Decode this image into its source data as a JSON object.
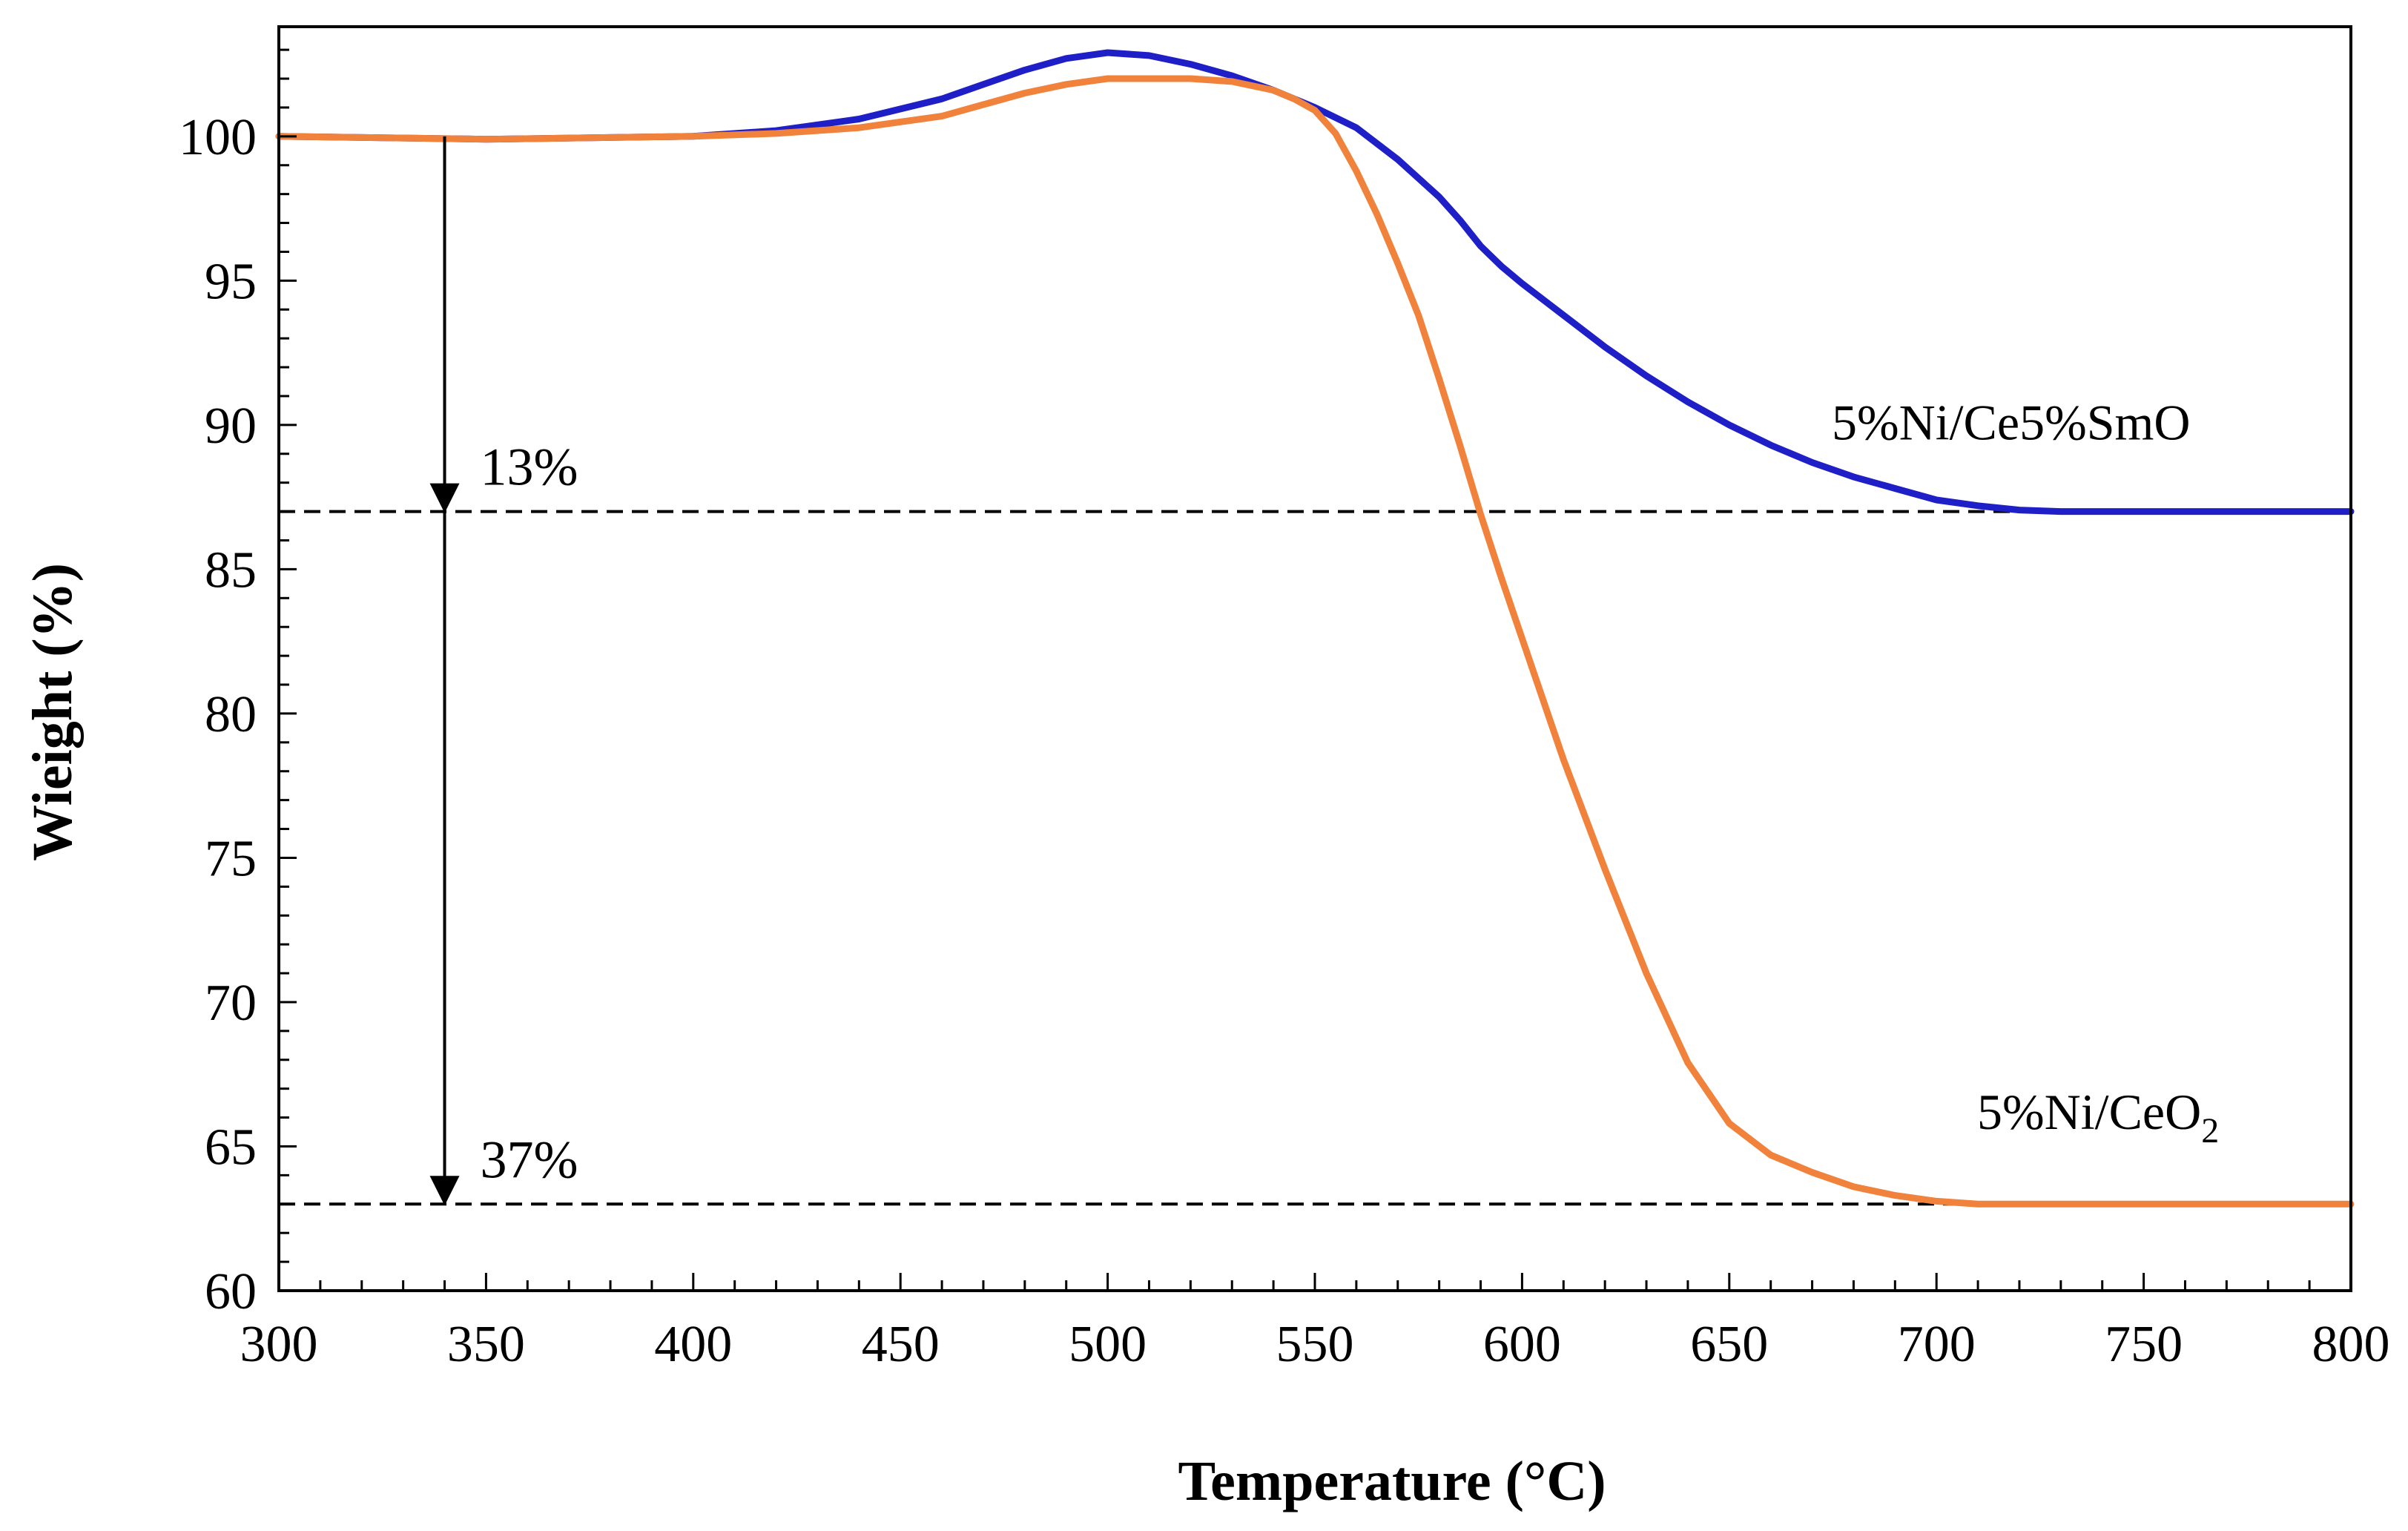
{
  "chart_data": {
    "type": "line",
    "title": "",
    "xlabel": "Temperature (°C)",
    "ylabel": "Wieight (%)",
    "xlim": [
      300,
      800
    ],
    "ylim": [
      60,
      103.8
    ],
    "xticks": [
      300,
      350,
      400,
      450,
      500,
      550,
      600,
      650,
      700,
      750,
      800
    ],
    "yticks": [
      60,
      65,
      70,
      75,
      80,
      85,
      90,
      95,
      100
    ],
    "grid": false,
    "legend": "none",
    "series": [
      {
        "name": "5%Ni/Ce5%SmO",
        "label_parts": [
          "5%Ni/Ce5%SmO"
        ],
        "color": "#1f1fc8",
        "x": [
          300,
          350,
          400,
          420,
          440,
          460,
          470,
          480,
          490,
          500,
          510,
          520,
          530,
          540,
          550,
          560,
          570,
          580,
          585,
          590,
          595,
          600,
          610,
          620,
          630,
          640,
          650,
          660,
          670,
          680,
          690,
          700,
          710,
          720,
          730,
          750,
          800
        ],
        "y": [
          100,
          99.9,
          100,
          100.2,
          100.6,
          101.3,
          101.8,
          102.3,
          102.7,
          102.9,
          102.8,
          102.5,
          102.1,
          101.6,
          101.0,
          100.3,
          99.2,
          97.9,
          97.1,
          96.2,
          95.5,
          94.9,
          93.8,
          92.7,
          91.7,
          90.8,
          90.0,
          89.3,
          88.7,
          88.2,
          87.8,
          87.4,
          87.2,
          87.05,
          87.0,
          87.0,
          87.0
        ]
      },
      {
        "name": "5%Ni/CeO2",
        "label_parts": [
          "5%Ni/CeO",
          "2"
        ],
        "color": "#f0823c",
        "x": [
          300,
          350,
          400,
          420,
          440,
          460,
          470,
          480,
          490,
          500,
          510,
          520,
          530,
          540,
          545,
          550,
          555,
          560,
          565,
          570,
          575,
          580,
          585,
          590,
          595,
          600,
          610,
          620,
          630,
          640,
          650,
          660,
          670,
          680,
          690,
          700,
          710,
          720,
          800
        ],
        "y": [
          100,
          99.9,
          100,
          100.1,
          100.3,
          100.7,
          101.1,
          101.5,
          101.8,
          102.0,
          102.0,
          102.0,
          101.9,
          101.6,
          101.3,
          100.9,
          100.1,
          98.8,
          97.3,
          95.6,
          93.8,
          91.6,
          89.3,
          86.9,
          84.7,
          82.6,
          78.4,
          74.6,
          71.0,
          67.9,
          65.8,
          64.7,
          64.1,
          63.6,
          63.3,
          63.1,
          63.0,
          63.0,
          63.0
        ]
      }
    ],
    "annotations": [
      {
        "text": "13%",
        "arrow_x": 340,
        "arrow_from": 100,
        "arrow_to": 87
      },
      {
        "text": "37%",
        "arrow_x": 340,
        "arrow_from": 100,
        "arrow_to": 63
      }
    ],
    "reference_lines": [
      87,
      63
    ]
  }
}
